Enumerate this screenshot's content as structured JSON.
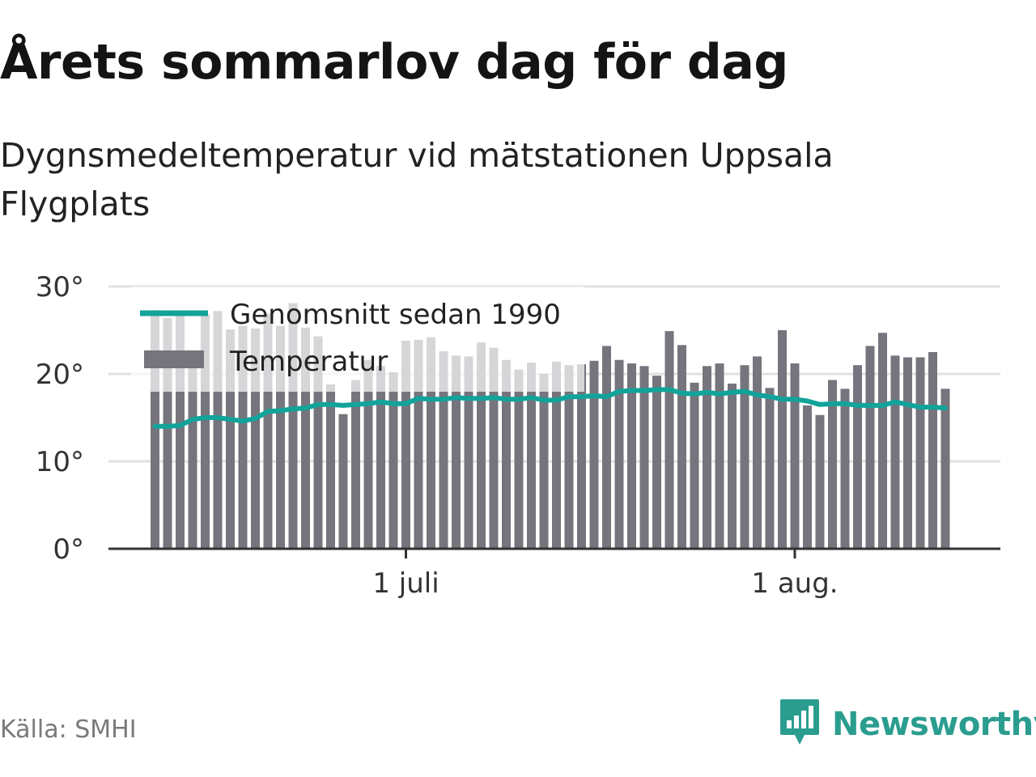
{
  "header": {
    "title": "Årets sommarlov dag för dag",
    "subtitle": "Dygnsmedeltemperatur vid mätstationen Uppsala Flygplats"
  },
  "footer": {
    "source": "Källa: SMHI",
    "brand": "Newsworthy",
    "brand_icon": "bar-chart-speech-bubble-icon"
  },
  "colors": {
    "bar": "#76747c",
    "average_line": "#12a39a",
    "grid": "#e0e0e0",
    "brand": "#2a9d8f"
  },
  "chart_data": {
    "type": "bar",
    "x_start": "2018-06-11",
    "x_tick_labels": [
      {
        "date": "2018-07-01",
        "label": "1 juli"
      },
      {
        "date": "2018-08-01",
        "label": "1 aug."
      }
    ],
    "y_ticks": [
      0,
      10,
      20,
      30
    ],
    "y_tick_labels": [
      "0°",
      "10°",
      "20°",
      "30°"
    ],
    "ylim": [
      0,
      30
    ],
    "grid": true,
    "legend_position": "top-left",
    "series": [
      {
        "name": "Temperatur",
        "type": "bar",
        "values": [
          27.3,
          26.4,
          27.2,
          22.1,
          26.8,
          27.2,
          25.1,
          25.5,
          25.2,
          26.9,
          25.5,
          28.1,
          25.3,
          24.3,
          18.8,
          15.4,
          19.3,
          21.6,
          20.9,
          20.2,
          23.8,
          23.9,
          24.2,
          22.6,
          22.1,
          22.0,
          23.6,
          23.0,
          21.6,
          20.5,
          21.3,
          20.0,
          21.4,
          21.0,
          21.1,
          21.5,
          23.2,
          21.6,
          21.2,
          20.9,
          19.8,
          24.9,
          23.3,
          19.0,
          20.9,
          21.2,
          18.9,
          21.0,
          22.0,
          18.4,
          25.0,
          21.2,
          16.4,
          15.3,
          19.3,
          18.3,
          21.0,
          23.2,
          24.7,
          22.1,
          21.9,
          21.9,
          22.5,
          18.3
        ]
      },
      {
        "name": "Genomsnitt sedan 1990",
        "type": "line",
        "values": [
          14.0,
          14.0,
          14.1,
          14.8,
          15.0,
          15.0,
          14.8,
          14.6,
          14.9,
          15.7,
          15.8,
          16.0,
          16.1,
          16.5,
          16.5,
          16.4,
          16.5,
          16.6,
          16.8,
          16.6,
          16.6,
          17.2,
          17.1,
          17.1,
          17.3,
          17.2,
          17.2,
          17.3,
          17.1,
          17.1,
          17.3,
          17.0,
          17.0,
          17.4,
          17.4,
          17.5,
          17.4,
          18.0,
          18.1,
          18.1,
          18.2,
          18.2,
          17.8,
          17.7,
          17.9,
          17.7,
          17.9,
          18.0,
          17.6,
          17.4,
          17.1,
          17.1,
          16.9,
          16.5,
          16.6,
          16.6,
          16.4,
          16.4,
          16.4,
          16.8,
          16.5,
          16.2,
          16.2,
          16.1
        ]
      }
    ]
  }
}
